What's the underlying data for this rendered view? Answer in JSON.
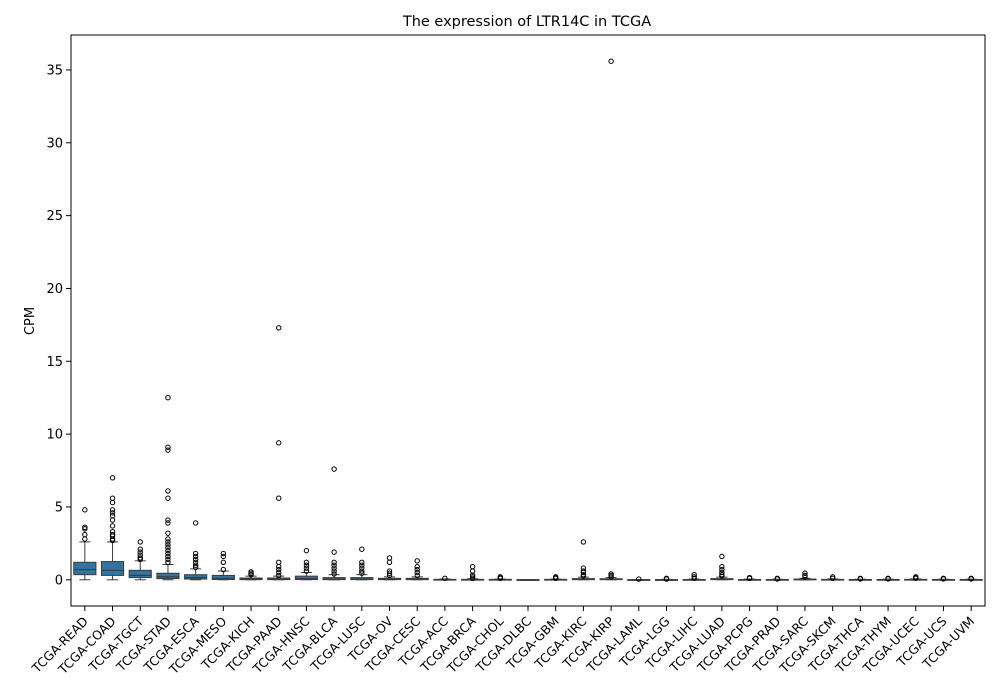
{
  "chart_data": {
    "type": "box",
    "title": "The expression of LTR14C in TCGA",
    "xlabel": "",
    "ylabel": "CPM",
    "ylim": [
      -1.8,
      37.4
    ],
    "yticks": [
      0,
      5,
      10,
      15,
      20,
      25,
      30,
      35
    ],
    "grid": false,
    "legend": "none",
    "colors": {
      "box_fill": "#3274a1",
      "line": "#3c3c3c",
      "axis": "#000000"
    },
    "categories": [
      "TCGA-READ",
      "TCGA-COAD",
      "TCGA-TGCT",
      "TCGA-STAD",
      "TCGA-ESCA",
      "TCGA-MESO",
      "TCGA-KICH",
      "TCGA-PAAD",
      "TCGA-HNSC",
      "TCGA-BLCA",
      "TCGA-LUSC",
      "TCGA-OV",
      "TCGA-CESC",
      "TCGA-ACC",
      "TCGA-BRCA",
      "TCGA-CHOL",
      "TCGA-DLBC",
      "TCGA-GBM",
      "TCGA-KIRC",
      "TCGA-KIRP",
      "TCGA-LAML",
      "TCGA-LGG",
      "TCGA-LIHC",
      "TCGA-LUAD",
      "TCGA-PCPG",
      "TCGA-PRAD",
      "TCGA-SARC",
      "TCGA-SKCM",
      "TCGA-THCA",
      "TCGA-THYM",
      "TCGA-UCEC",
      "TCGA-UCS",
      "TCGA-UVM"
    ],
    "boxes": [
      {
        "min": 0.0,
        "q1": 0.35,
        "median": 0.7,
        "q3": 1.2,
        "max": 2.6,
        "outliers": [
          2.8,
          3.1,
          3.5,
          3.6,
          4.8
        ]
      },
      {
        "min": 0.0,
        "q1": 0.3,
        "median": 0.65,
        "q3": 1.25,
        "max": 2.6,
        "outliers": [
          2.7,
          2.8,
          3.0,
          3.1,
          3.3,
          3.7,
          4.1,
          4.4,
          4.6,
          4.8,
          5.3,
          5.6,
          7.0
        ]
      },
      {
        "min": 0.0,
        "q1": 0.15,
        "median": 0.3,
        "q3": 0.65,
        "max": 1.3,
        "outliers": [
          1.4,
          1.5,
          1.7,
          1.9,
          2.1,
          2.6
        ]
      },
      {
        "min": 0.0,
        "q1": 0.08,
        "median": 0.2,
        "q3": 0.45,
        "max": 1.05,
        "outliers": [
          1.2,
          1.4,
          1.6,
          1.8,
          2.0,
          2.2,
          2.4,
          2.6,
          2.8,
          3.2,
          3.9,
          4.1,
          5.6,
          6.1,
          8.9,
          9.1,
          12.5
        ]
      },
      {
        "min": 0.0,
        "q1": 0.05,
        "median": 0.15,
        "q3": 0.35,
        "max": 0.75,
        "outliers": [
          0.85,
          1.0,
          1.2,
          1.4,
          1.6,
          1.8,
          3.9
        ]
      },
      {
        "min": 0.0,
        "q1": 0.02,
        "median": 0.1,
        "q3": 0.3,
        "max": 0.6,
        "outliers": [
          0.7,
          1.2,
          1.6,
          1.8
        ]
      },
      {
        "min": 0.0,
        "q1": 0.01,
        "median": 0.05,
        "q3": 0.12,
        "max": 0.25,
        "outliers": [
          0.35,
          0.45,
          0.55
        ]
      },
      {
        "min": 0.0,
        "q1": 0.01,
        "median": 0.05,
        "q3": 0.12,
        "max": 0.25,
        "outliers": [
          0.3,
          0.5,
          0.7,
          0.9,
          1.2,
          5.6,
          9.4,
          17.3
        ]
      },
      {
        "min": 0.0,
        "q1": 0.02,
        "median": 0.08,
        "q3": 0.25,
        "max": 0.5,
        "outliers": [
          0.6,
          0.8,
          1.0,
          1.2,
          2.0
        ]
      },
      {
        "min": 0.0,
        "q1": 0.01,
        "median": 0.05,
        "q3": 0.15,
        "max": 0.35,
        "outliers": [
          0.4,
          0.6,
          0.8,
          1.0,
          1.2,
          1.9,
          7.6
        ]
      },
      {
        "min": 0.0,
        "q1": 0.01,
        "median": 0.05,
        "q3": 0.15,
        "max": 0.35,
        "outliers": [
          0.45,
          0.6,
          0.8,
          1.0,
          1.2,
          2.1
        ]
      },
      {
        "min": 0.0,
        "q1": 0.01,
        "median": 0.04,
        "q3": 0.1,
        "max": 0.2,
        "outliers": [
          0.3,
          0.45,
          0.6,
          1.2,
          1.5
        ]
      },
      {
        "min": 0.0,
        "q1": 0.01,
        "median": 0.04,
        "q3": 0.1,
        "max": 0.2,
        "outliers": [
          0.3,
          0.5,
          0.7,
          0.9,
          1.3
        ]
      },
      {
        "min": 0.0,
        "q1": 0.0,
        "median": 0.01,
        "q3": 0.03,
        "max": 0.06,
        "outliers": [
          0.1
        ]
      },
      {
        "min": 0.0,
        "q1": 0.0,
        "median": 0.01,
        "q3": 0.03,
        "max": 0.07,
        "outliers": [
          0.1,
          0.2,
          0.3,
          0.6,
          0.9
        ]
      },
      {
        "min": 0.0,
        "q1": 0.0,
        "median": 0.01,
        "q3": 0.03,
        "max": 0.05,
        "outliers": [
          0.1,
          0.15,
          0.2
        ]
      },
      {
        "min": 0.0,
        "q1": 0.0,
        "median": 0.0,
        "q3": 0.01,
        "max": 0.02,
        "outliers": []
      },
      {
        "min": 0.0,
        "q1": 0.0,
        "median": 0.01,
        "q3": 0.03,
        "max": 0.05,
        "outliers": [
          0.1,
          0.15,
          0.2
        ]
      },
      {
        "min": 0.0,
        "q1": 0.01,
        "median": 0.03,
        "q3": 0.08,
        "max": 0.18,
        "outliers": [
          0.25,
          0.35,
          0.5,
          0.6,
          0.8,
          2.6
        ]
      },
      {
        "min": 0.0,
        "q1": 0.01,
        "median": 0.03,
        "q3": 0.07,
        "max": 0.15,
        "outliers": [
          0.2,
          0.3,
          0.4,
          35.6
        ]
      },
      {
        "min": 0.0,
        "q1": 0.0,
        "median": 0.0,
        "q3": 0.01,
        "max": 0.02,
        "outliers": [
          0.05
        ]
      },
      {
        "min": 0.0,
        "q1": 0.0,
        "median": 0.0,
        "q3": 0.01,
        "max": 0.03,
        "outliers": [
          0.05,
          0.1
        ]
      },
      {
        "min": 0.0,
        "q1": 0.0,
        "median": 0.01,
        "q3": 0.02,
        "max": 0.05,
        "outliers": [
          0.1,
          0.2,
          0.35
        ]
      },
      {
        "min": 0.0,
        "q1": 0.01,
        "median": 0.03,
        "q3": 0.08,
        "max": 0.18,
        "outliers": [
          0.25,
          0.35,
          0.5,
          0.7,
          0.9,
          1.6
        ]
      },
      {
        "min": 0.0,
        "q1": 0.0,
        "median": 0.01,
        "q3": 0.02,
        "max": 0.05,
        "outliers": [
          0.1,
          0.15
        ]
      },
      {
        "min": 0.0,
        "q1": 0.0,
        "median": 0.01,
        "q3": 0.02,
        "max": 0.04,
        "outliers": [
          0.06,
          0.1
        ]
      },
      {
        "min": 0.0,
        "q1": 0.0,
        "median": 0.02,
        "q3": 0.05,
        "max": 0.1,
        "outliers": [
          0.2,
          0.3,
          0.45
        ]
      },
      {
        "min": 0.0,
        "q1": 0.0,
        "median": 0.01,
        "q3": 0.03,
        "max": 0.06,
        "outliers": [
          0.1,
          0.2
        ]
      },
      {
        "min": 0.0,
        "q1": 0.0,
        "median": 0.01,
        "q3": 0.02,
        "max": 0.04,
        "outliers": [
          0.06,
          0.1
        ]
      },
      {
        "min": 0.0,
        "q1": 0.0,
        "median": 0.01,
        "q3": 0.02,
        "max": 0.04,
        "outliers": [
          0.06,
          0.1
        ]
      },
      {
        "min": 0.0,
        "q1": 0.0,
        "median": 0.01,
        "q3": 0.03,
        "max": 0.06,
        "outliers": [
          0.1,
          0.15,
          0.2
        ]
      },
      {
        "min": 0.0,
        "q1": 0.0,
        "median": 0.01,
        "q3": 0.02,
        "max": 0.04,
        "outliers": [
          0.06,
          0.1
        ]
      },
      {
        "min": 0.0,
        "q1": 0.0,
        "median": 0.01,
        "q3": 0.02,
        "max": 0.04,
        "outliers": [
          0.06,
          0.1
        ]
      }
    ]
  }
}
